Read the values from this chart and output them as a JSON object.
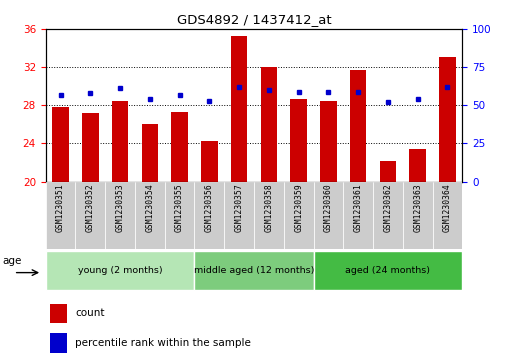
{
  "title": "GDS4892 / 1437412_at",
  "samples": [
    "GSM1230351",
    "GSM1230352",
    "GSM1230353",
    "GSM1230354",
    "GSM1230355",
    "GSM1230356",
    "GSM1230357",
    "GSM1230358",
    "GSM1230359",
    "GSM1230360",
    "GSM1230361",
    "GSM1230362",
    "GSM1230363",
    "GSM1230364"
  ],
  "counts": [
    27.8,
    27.2,
    28.5,
    26.0,
    27.3,
    24.2,
    35.3,
    32.0,
    28.7,
    28.5,
    31.7,
    22.2,
    23.4,
    33.1
  ],
  "percentiles": [
    57,
    58,
    61,
    54,
    57,
    53,
    62,
    60,
    59,
    59,
    59,
    52,
    54,
    62
  ],
  "ylim_left": [
    20,
    36
  ],
  "ylim_right": [
    0,
    100
  ],
  "yticks_left": [
    20,
    24,
    28,
    32,
    36
  ],
  "yticks_right": [
    0,
    25,
    50,
    75,
    100
  ],
  "bar_color": "#cc0000",
  "dot_color": "#0000cc",
  "groups": [
    {
      "label": "young (2 months)",
      "start": 0,
      "end": 5
    },
    {
      "label": "middle aged (12 months)",
      "start": 5,
      "end": 9
    },
    {
      "label": "aged (24 months)",
      "start": 9,
      "end": 14
    }
  ],
  "group_colors": [
    "#b5e6b5",
    "#7dcc7d",
    "#44bb44"
  ],
  "age_label": "age",
  "legend_labels": [
    "count",
    "percentile rank within the sample"
  ],
  "legend_colors": [
    "#cc0000",
    "#0000cc"
  ]
}
